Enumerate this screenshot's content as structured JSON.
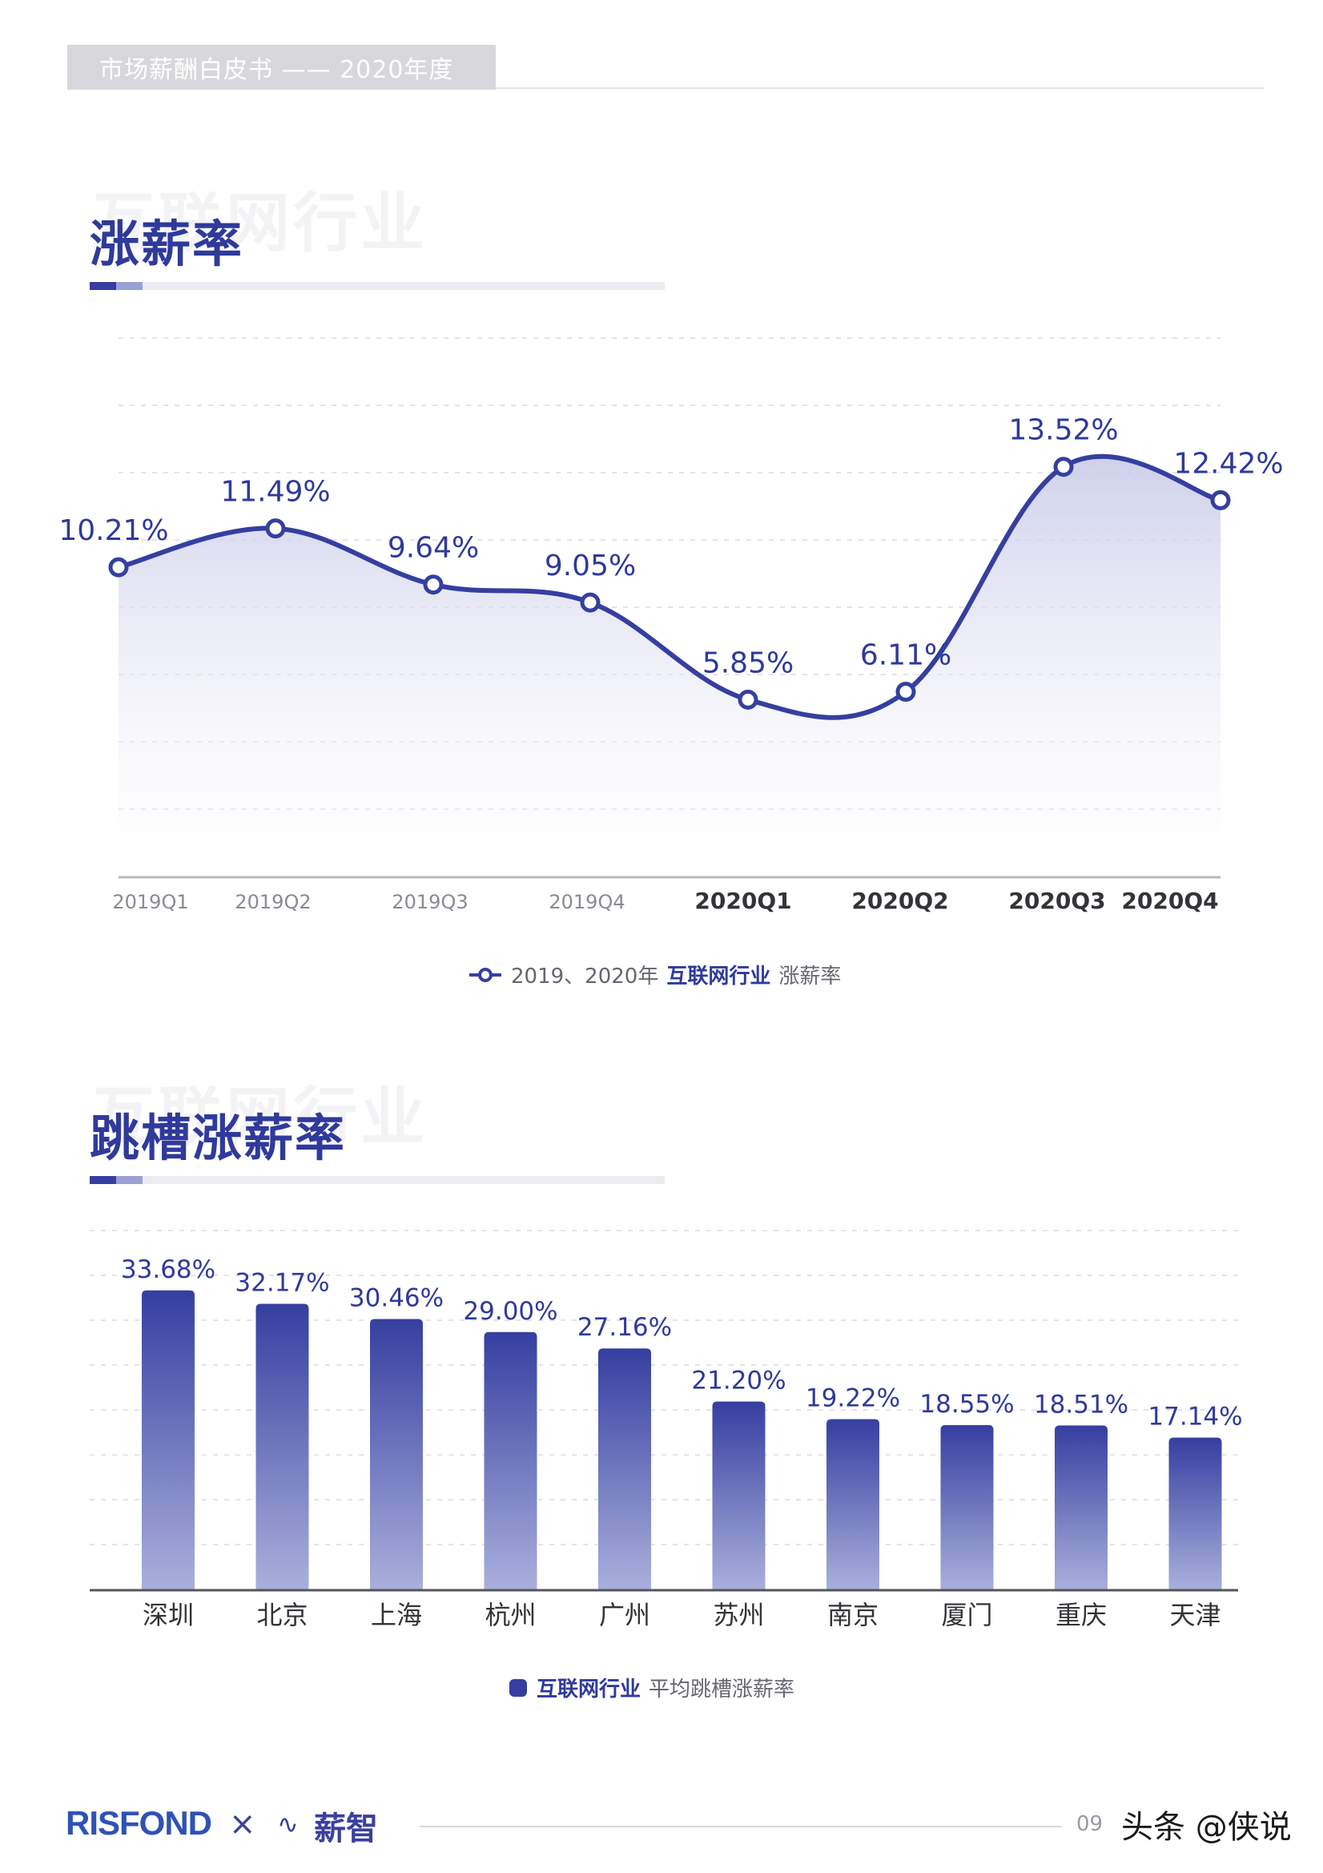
{
  "header": {
    "title": "市场薪酬白皮书 —— 2020年度"
  },
  "section1": {
    "ghost": "互联网行业",
    "title": "涨薪率",
    "legend_prefix": "2019、2020年",
    "legend_strong": "互联网行业",
    "legend_suffix": "涨薪率"
  },
  "section2": {
    "ghost": "互联网行业",
    "title": "跳槽涨薪率",
    "legend_strong": "互联网行业",
    "legend_suffix": "平均跳槽涨薪率"
  },
  "chart_data": [
    {
      "type": "area",
      "categories": [
        "2019Q1",
        "2019Q2",
        "2019Q3",
        "2019Q4",
        "2020Q1",
        "2020Q2",
        "2020Q3",
        "2020Q4"
      ],
      "values": [
        10.21,
        11.49,
        9.64,
        9.05,
        5.85,
        6.11,
        13.52,
        12.42
      ],
      "data_labels": [
        "10.21%",
        "11.49%",
        "9.64%",
        "9.05%",
        "5.85%",
        "6.11%",
        "13.52%",
        "12.42%"
      ],
      "bold_categories": [
        "2020Q1",
        "2020Q2",
        "2020Q3",
        "2020Q4"
      ],
      "series": [
        {
          "name": "2019、2020年 互联网行业 涨薪率",
          "values": [
            10.21,
            11.49,
            9.64,
            9.05,
            5.85,
            6.11,
            13.52,
            12.42
          ]
        }
      ],
      "grid": true,
      "line_color": "#353fa0",
      "legend_position": "bottom-center"
    },
    {
      "type": "bar",
      "categories": [
        "深圳",
        "北京",
        "上海",
        "杭州",
        "广州",
        "苏州",
        "南京",
        "厦门",
        "重庆",
        "天津"
      ],
      "values": [
        33.68,
        32.17,
        30.46,
        29.0,
        27.16,
        21.2,
        19.22,
        18.55,
        18.51,
        17.14
      ],
      "data_labels": [
        "33.68%",
        "32.17%",
        "30.46%",
        "29.00%",
        "27.16%",
        "21.20%",
        "19.22%",
        "18.55%",
        "18.51%",
        "17.14%"
      ],
      "series": [
        {
          "name": "互联网行业 平均跳槽涨薪率",
          "values": [
            33.68,
            32.17,
            30.46,
            29.0,
            27.16,
            21.2,
            19.22,
            18.55,
            18.51,
            17.14
          ]
        }
      ],
      "grid": true,
      "bar_color_top": "#353fa0",
      "bar_color_bottom": "#aab0dc",
      "legend_position": "bottom-center"
    }
  ],
  "footer": {
    "logo_a": "RISFOND",
    "times": "×",
    "logo_b_icon": "∿",
    "logo_b": "薪智",
    "page": "09",
    "watermark": "头条 @侠说"
  }
}
